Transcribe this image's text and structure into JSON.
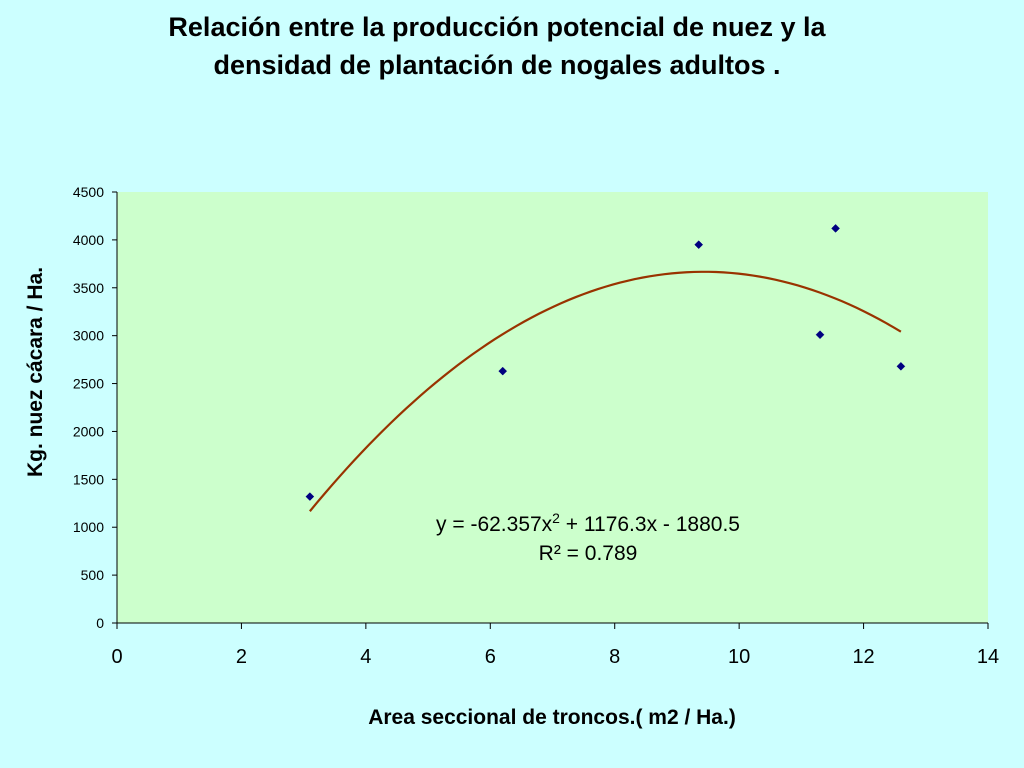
{
  "chart_data": {
    "type": "scatter",
    "title_lines": [
      "Relación entre la producción potencial de nuez y la",
      "densidad de plantación de nogales adultos ."
    ],
    "xlabel": "Area seccional de troncos.( m2 / Ha.)",
    "ylabel": "Kg. nuez cácara / Ha.",
    "xlim": [
      0,
      14
    ],
    "ylim": [
      0,
      4500
    ],
    "x_ticks": [
      0,
      2,
      4,
      6,
      8,
      10,
      12,
      14
    ],
    "y_ticks": [
      0,
      500,
      1000,
      1500,
      2000,
      2500,
      3000,
      3500,
      4000,
      4500
    ],
    "grid": false,
    "legend": "none",
    "series": [
      {
        "points": [
          {
            "x": 3.1,
            "y": 1320
          },
          {
            "x": 6.2,
            "y": 2630
          },
          {
            "x": 9.35,
            "y": 3950
          },
          {
            "x": 11.3,
            "y": 3010
          },
          {
            "x": 11.55,
            "y": 4120
          },
          {
            "x": 12.6,
            "y": 2680
          }
        ],
        "color": "#000080"
      }
    ],
    "trendline": {
      "type": "polynomial",
      "coefficients": {
        "a": -62.357,
        "b": 1176.3,
        "c": -1880.5
      },
      "x_range": [
        3.1,
        12.6
      ],
      "color": "#993300"
    },
    "equation_prefix": "y = -62.357x",
    "equation_exponent": "2",
    "equation_suffix": " + 1176.3x - 1880.5",
    "r_squared": "R² = 0.789",
    "colors": {
      "background": "#ccffff",
      "plot_area": "#ccffcc"
    }
  }
}
